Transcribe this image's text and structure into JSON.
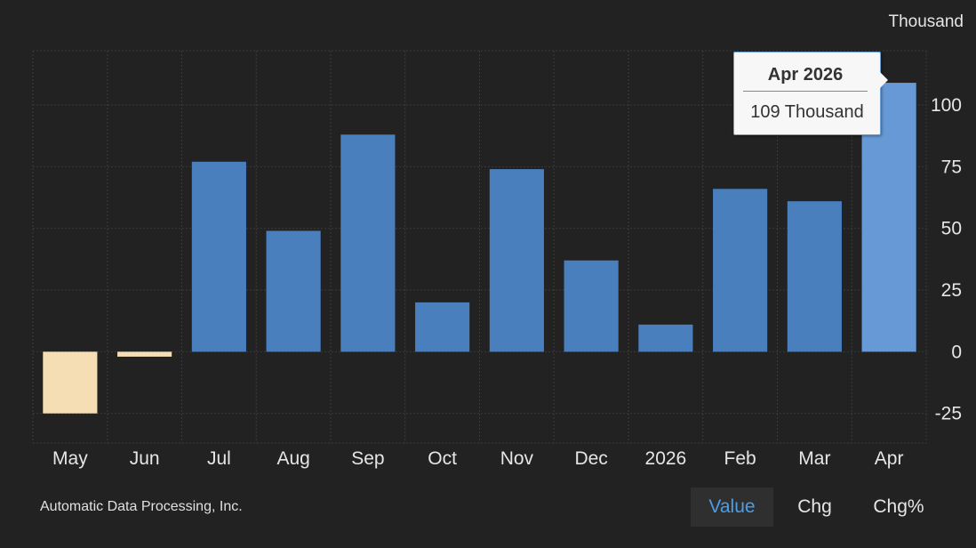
{
  "chart_data": {
    "type": "bar",
    "ylabel": "Thousand",
    "categories": [
      "May",
      "Jun",
      "Jul",
      "Aug",
      "Sep",
      "Oct",
      "Nov",
      "Dec",
      "2026",
      "Feb",
      "Mar",
      "Apr"
    ],
    "values": [
      -25,
      -2,
      77,
      49,
      88,
      20,
      74,
      37,
      11,
      66,
      61,
      109
    ],
    "ylim": [
      -37,
      122
    ],
    "yticks": [
      -25,
      0,
      25,
      50,
      75,
      100
    ],
    "grid": true,
    "colors": {
      "positive": "#4a7fbd",
      "negative": "#f5deb3",
      "highlight": "#6699d6"
    },
    "highlight_index": 11,
    "tooltip": {
      "title": "Apr 2026",
      "value": "109 Thousand"
    }
  },
  "footer": {
    "source": "Automatic Data Processing, Inc.",
    "tabs": [
      {
        "label": "Value",
        "active": true
      },
      {
        "label": "Chg",
        "active": false
      },
      {
        "label": "Chg%",
        "active": false
      }
    ]
  }
}
